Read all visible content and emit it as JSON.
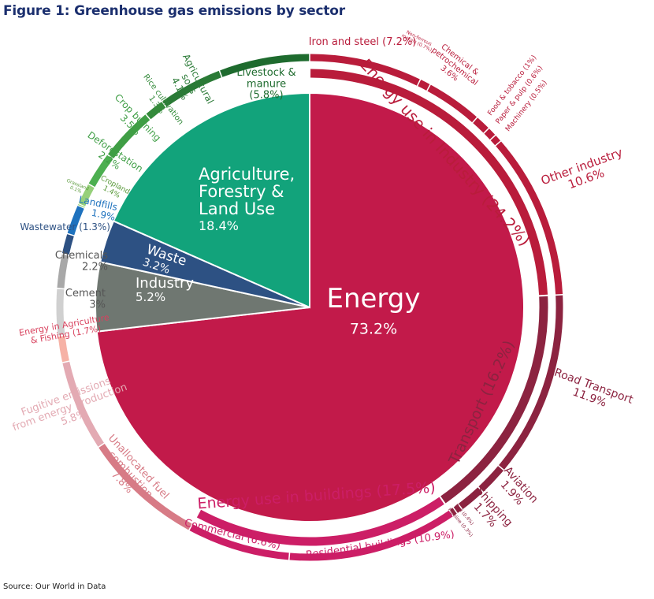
{
  "title": "Figure 1: Greenhouse gas emissions by sector",
  "source": "Source: Our World in Data",
  "chart_data": {
    "type": "pie",
    "unit": "%",
    "inner": [
      {
        "name": "Energy",
        "value": 73.2,
        "label": "73.2%",
        "color": "#c21a4a"
      },
      {
        "name": "Industry",
        "value": 5.2,
        "label": "5.2%",
        "color": "#6f7771"
      },
      {
        "name": "Waste",
        "value": 3.2,
        "label": "3.2%",
        "color": "#2d5183"
      },
      {
        "name": "Agriculture, Forestry & Land Use",
        "lines": [
          "Agriculture,",
          "Forestry &",
          "Land Use"
        ],
        "value": 18.4,
        "label": "18.4%",
        "color": "#12a37b"
      }
    ],
    "middle": [
      {
        "name": "Energy use in Industry",
        "value": 24.2,
        "label": "(24.2%)",
        "color": "#b91c3b"
      },
      {
        "name": "Transport",
        "value": 16.2,
        "label": "(16.2%)",
        "color": "#8c2340"
      },
      {
        "name": "Energy use in buildings",
        "value": 17.5,
        "label": "(17.5%)",
        "color": "#cc1e66"
      }
    ],
    "outer": [
      {
        "name": "Iron and steel",
        "value": 7.2,
        "label": "(7.2%)",
        "color": "#b91c3b"
      },
      {
        "name": "Non-ferrous metals",
        "value": 0.7,
        "label": "(0.7%)",
        "color": "#b91c3b"
      },
      {
        "name": "Chemical & petrochemical",
        "lines": [
          "Chemical &",
          "petrochemical"
        ],
        "value": 3.6,
        "label": "3.6%",
        "color": "#b91c3b"
      },
      {
        "name": "Food & tobacco",
        "value": 1.0,
        "label": "(1%)",
        "color": "#b91c3b"
      },
      {
        "name": "Paper & pulp",
        "value": 0.6,
        "label": "(0.6%)",
        "color": "#b91c3b"
      },
      {
        "name": "Machinery",
        "value": 0.5,
        "label": "(0.5%)",
        "color": "#b91c3b"
      },
      {
        "name": "Other industry",
        "value": 10.6,
        "label": "10.6%",
        "color": "#b91c3b"
      },
      {
        "name": "Road Transport",
        "value": 11.9,
        "label": "11.9%",
        "color": "#8c2340"
      },
      {
        "name": "Aviation",
        "value": 1.9,
        "label": "1.9%",
        "color": "#8c2340"
      },
      {
        "name": "Shipping",
        "value": 1.7,
        "label": "1.7%",
        "color": "#8c2340"
      },
      {
        "name": "Rail",
        "value": 0.4,
        "label": "(0.4%)",
        "color": "#8c2340"
      },
      {
        "name": "Pipeline",
        "value": 0.3,
        "label": "(0.3%)",
        "color": "#8c2340"
      },
      {
        "name": "Residential buildings",
        "value": 10.9,
        "label": "(10.9%)",
        "color": "#cc1e66"
      },
      {
        "name": "Commercial",
        "value": 6.6,
        "label": "(6.6%)",
        "color": "#cc1e66"
      },
      {
        "name": "Unallocated fuel combustion",
        "lines": [
          "Unallocated fuel",
          "combustion"
        ],
        "value": 7.8,
        "label": "7.8%",
        "color": "#d77b86"
      },
      {
        "name": "Fugitive emissions from energy production",
        "lines": [
          "Fugitive emissions",
          "from energy production"
        ],
        "value": 5.8,
        "label": "5.8%",
        "color": "#e3aab3"
      },
      {
        "name": "Energy in Agriculture & Fishing",
        "lines": [
          "Energy in Agriculture",
          "& Fishing"
        ],
        "value": 1.7,
        "label": "(1.7%)",
        "color": "#f6b2a6"
      },
      {
        "name": "Cement",
        "value": 3.0,
        "label": "3%",
        "color": "#d0d0d0"
      },
      {
        "name": "Chemicals",
        "value": 2.2,
        "label": "2.2%",
        "color": "#a8a8a8"
      },
      {
        "name": "Wastewater",
        "value": 1.3,
        "label": "(1.3%)",
        "color": "#2d5183"
      },
      {
        "name": "Landfills",
        "value": 1.9,
        "label": "1.9%",
        "color": "#1e72be"
      },
      {
        "name": "Grassland",
        "value": 0.1,
        "label": "0.1%",
        "color": "#96d07a"
      },
      {
        "name": "Cropland",
        "value": 1.4,
        "label": "1.4%",
        "color": "#96d07a"
      },
      {
        "name": "Deforestation",
        "value": 2.2,
        "label": "2.2%",
        "color": "#4caf50"
      },
      {
        "name": "Crop burning",
        "value": 3.5,
        "label": "3.5%",
        "color": "#3f9e45"
      },
      {
        "name": "Rice cultivation",
        "value": 1.3,
        "label": "1.3%",
        "color": "#348a3b"
      },
      {
        "name": "Agricultural soils",
        "lines": [
          "Agricultural",
          "soils"
        ],
        "value": 4.1,
        "label": "4.1%",
        "color": "#2a7a36"
      },
      {
        "name": "Livestock & manure",
        "lines": [
          "Livestock &",
          "manure"
        ],
        "value": 5.8,
        "label": "(5.8%)",
        "color": "#1e6b2e"
      }
    ]
  }
}
